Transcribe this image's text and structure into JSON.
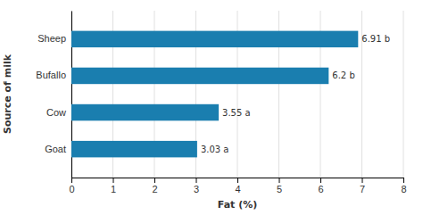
{
  "chart_data": {
    "type": "bar",
    "orientation": "horizontal",
    "categories": [
      "Goat",
      "Cow",
      "Bufallo",
      "Sheep"
    ],
    "values": [
      3.03,
      3.55,
      6.2,
      6.91
    ],
    "value_labels": [
      "3.03 a",
      "3.55 a",
      "6.2 b",
      "6.91 b"
    ],
    "data_labels": true,
    "color": "#1a7eaf",
    "xlabel": "Fat (%)",
    "ylabel": "Source of milk",
    "xlim": [
      0,
      8
    ],
    "xticks": [
      0,
      1,
      2,
      3,
      4,
      5,
      6,
      7,
      8
    ],
    "grid": true
  }
}
